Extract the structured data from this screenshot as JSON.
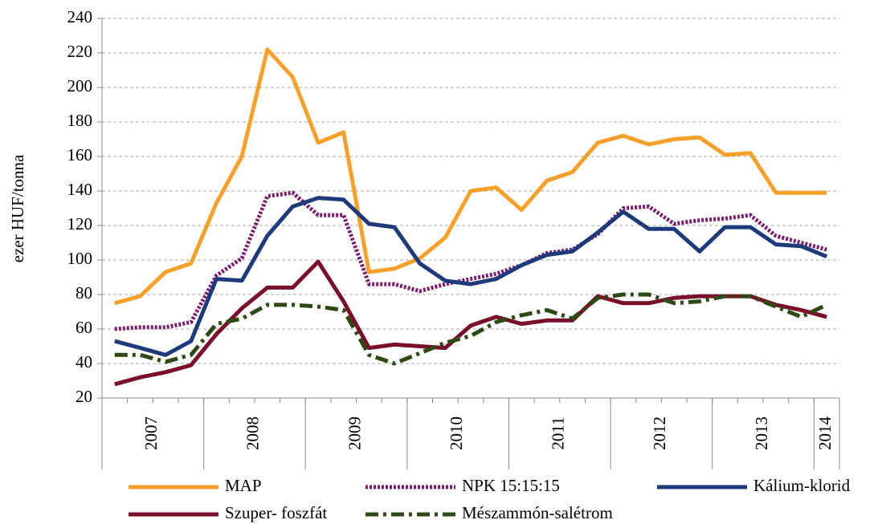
{
  "chart_data": {
    "type": "line",
    "ylabel": "ezer HUF/tonna",
    "categories": [
      null,
      null,
      null,
      null,
      null,
      null,
      null,
      null,
      null,
      null,
      null,
      null,
      null,
      null,
      null,
      null,
      null,
      null,
      null,
      null,
      null,
      null,
      null,
      null,
      null,
      null,
      null,
      null,
      null
    ],
    "year_labels": [
      "2007",
      "2008",
      "2009",
      "2010",
      "2011",
      "2012",
      "2013",
      "2014"
    ],
    "ylim": [
      20,
      240
    ],
    "yticks": [
      20,
      40,
      60,
      80,
      100,
      120,
      140,
      160,
      180,
      200,
      220,
      240
    ],
    "grid": true,
    "series": [
      {
        "name": "MAP",
        "color": "#f7a02a",
        "dash": "solid",
        "values": [
          75,
          79,
          93,
          98,
          133,
          160,
          222,
          206,
          168,
          174,
          93,
          95,
          101,
          113,
          140,
          142,
          129,
          146,
          151,
          168,
          172,
          167,
          170,
          171,
          161,
          162,
          139,
          139,
          139
        ]
      },
      {
        "name": "NPK 15:15:15",
        "color": "#7a1f6e",
        "dash": "dotted",
        "values": [
          60,
          61,
          61,
          64,
          91,
          101,
          137,
          139,
          126,
          126,
          86,
          86,
          82,
          86,
          89,
          92,
          97,
          104,
          106,
          115,
          130,
          131,
          121,
          123,
          124,
          126,
          114,
          110,
          106
        ]
      },
      {
        "name": "Kálium-klorid",
        "color": "#1f3a7a",
        "dash": "solid",
        "values": [
          53,
          49,
          45,
          53,
          89,
          88,
          114,
          131,
          136,
          135,
          121,
          119,
          98,
          88,
          86,
          89,
          97,
          103,
          105,
          116,
          128,
          118,
          118,
          105,
          119,
          119,
          109,
          108,
          102
        ]
      },
      {
        "name": "Szuper- foszfát",
        "color": "#7a0f2a",
        "dash": "solid",
        "values": [
          28,
          32,
          35,
          39,
          57,
          72,
          84,
          84,
          99,
          76,
          49,
          51,
          50,
          49,
          62,
          67,
          63,
          65,
          65,
          79,
          75,
          75,
          78,
          79,
          79,
          79,
          74,
          71,
          67
        ]
      },
      {
        "name": "Mészammón-salétrom",
        "color": "#2d4a14",
        "dash": "dashdot",
        "values": [
          45,
          45,
          41,
          45,
          63,
          66,
          74,
          74,
          73,
          71,
          45,
          40,
          46,
          52,
          56,
          64,
          68,
          71,
          66,
          78,
          80,
          80,
          75,
          76,
          79,
          79,
          73,
          67,
          74
        ]
      }
    ]
  }
}
